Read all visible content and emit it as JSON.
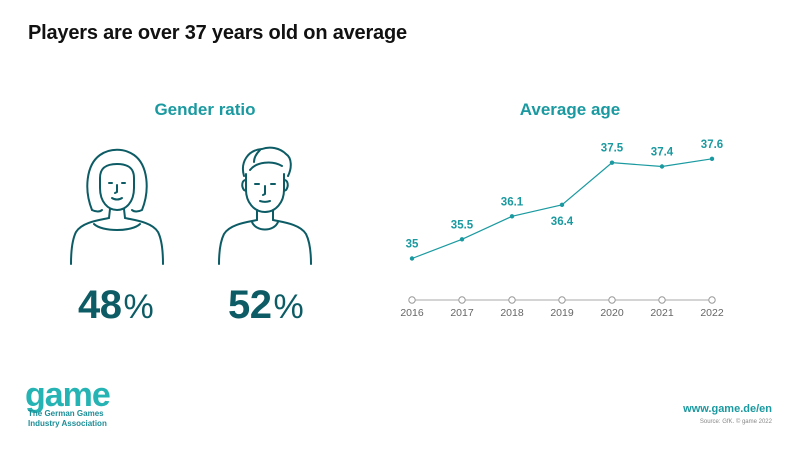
{
  "title": "Players are over 37 years old on average",
  "gender": {
    "title": "Gender ratio",
    "female_value": "48",
    "male_value": "52",
    "percent_sign": "%",
    "female_icon": "woman-outline-icon",
    "male_icon": "man-outline-icon"
  },
  "colors": {
    "accent": "#1a9aa0",
    "percent_text": "#0d5c65",
    "icon_stroke": "#0d5c65",
    "timeline": "#bbbbbb"
  },
  "chart_data": {
    "type": "line",
    "title": "Average age",
    "x": [
      "2016",
      "2017",
      "2018",
      "2019",
      "2020",
      "2021",
      "2022"
    ],
    "series": [
      {
        "values": [
          35,
          35.5,
          36.1,
          36.4,
          37.5,
          37.4,
          37.6
        ]
      }
    ],
    "data_labels": [
      "35",
      "35.5",
      "36.1",
      "36.4",
      "37.5",
      "37.4",
      "37.6"
    ],
    "ylim": [
      34.7,
      37.7
    ],
    "grid": false,
    "legend": "none"
  },
  "footer": {
    "logo": "game",
    "logo_line1": "The German Games",
    "logo_line2": "Industry Association",
    "website": "www.game.de/en",
    "source": "Source: GfK. © game 2022"
  }
}
